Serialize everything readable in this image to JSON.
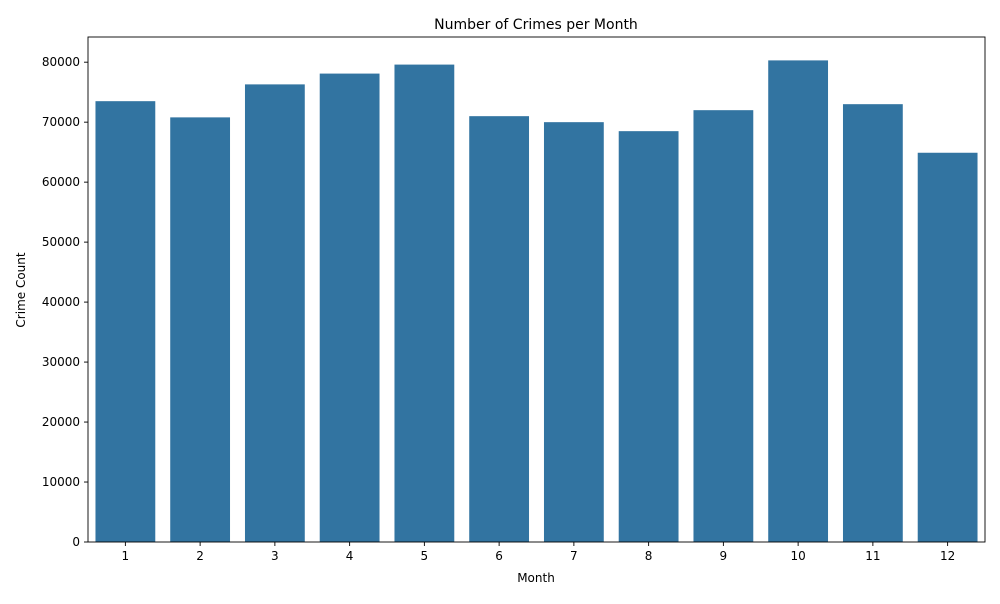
{
  "chart_data": {
    "type": "bar",
    "title": "Number of Crimes per Month",
    "xlabel": "Month",
    "ylabel": "Crime Count",
    "categories": [
      "1",
      "2",
      "3",
      "4",
      "5",
      "6",
      "7",
      "8",
      "9",
      "10",
      "11",
      "12"
    ],
    "values": [
      73500,
      70800,
      76300,
      78100,
      79600,
      71000,
      70000,
      68500,
      72000,
      80300,
      73000,
      64900
    ],
    "ylim": [
      0,
      84200
    ],
    "yticks": [
      0,
      10000,
      20000,
      30000,
      40000,
      50000,
      60000,
      70000,
      80000
    ],
    "ytick_labels": [
      "0",
      "10000",
      "20000",
      "30000",
      "40000",
      "50000",
      "60000",
      "70000",
      "80000"
    ],
    "bar_color": "#3274a1",
    "grid": false,
    "legend": "none"
  }
}
